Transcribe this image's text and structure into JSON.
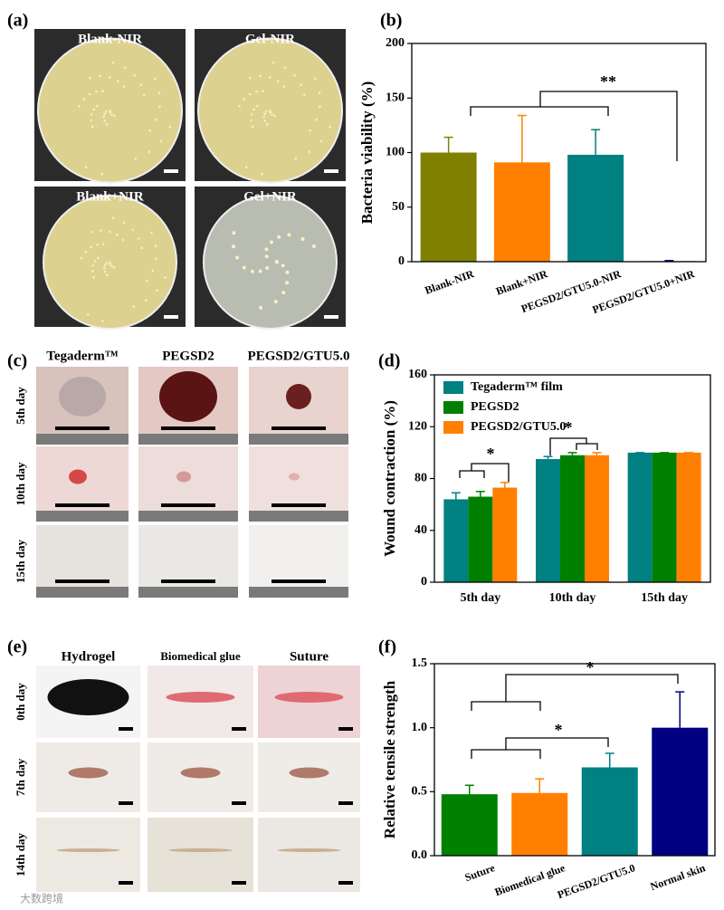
{
  "panel_labels": [
    "(a)",
    "(b)",
    "(c)",
    "(d)",
    "(e)",
    "(f)"
  ],
  "plates": {
    "titles": [
      "Blank-NIR",
      "Gel-NIR",
      "Blank+NIR",
      "Gel+NIR"
    ]
  },
  "wound_photos": {
    "columns": [
      "Tegaderm™",
      "PEGSD2",
      "PEGSD2/GTU5.0"
    ],
    "rows": [
      "5th day",
      "10th day",
      "15th day"
    ]
  },
  "incision_photos": {
    "columns": [
      "Hydrogel",
      "Biomedical glue",
      "Suture"
    ],
    "rows": [
      "0th day",
      "7th day",
      "14th day"
    ]
  },
  "chart_data": [
    {
      "type": "bar",
      "ylabel": "Bacteria viability (%)",
      "categories": [
        "Blank-NIR",
        "Blank+NIR",
        "PEGSD2/GTU5.0-NIR",
        "PEGSD2/GTU5.0+NIR"
      ],
      "values": [
        100,
        91,
        98,
        0.5
      ],
      "errors": [
        14,
        43,
        23,
        0.5
      ],
      "colors": [
        "#808000",
        "#ff8000",
        "#008080",
        "#000080"
      ],
      "ylim": [
        0,
        200
      ],
      "yticks": [
        0,
        50,
        100,
        150,
        200
      ],
      "annotations": [
        "**"
      ]
    },
    {
      "type": "grouped-bar",
      "ylabel": "Wound contraction (%)",
      "categories": [
        "5th day",
        "10th day",
        "15th day"
      ],
      "series": [
        {
          "name": "Tegaderm™ film",
          "color": "#008080",
          "values": [
            64,
            95,
            100
          ],
          "errors": [
            5,
            2,
            0
          ]
        },
        {
          "name": "PEGSD2",
          "color": "#008000",
          "values": [
            66,
            98,
            100
          ],
          "errors": [
            4,
            2,
            0
          ]
        },
        {
          "name": "PEGSD2/GTU5.0",
          "color": "#ff8000",
          "values": [
            73,
            98,
            100
          ],
          "errors": [
            4,
            2,
            0
          ]
        }
      ],
      "ylim": [
        0,
        160
      ],
      "yticks": [
        0,
        40,
        80,
        120,
        160
      ],
      "legend": "upper left",
      "annotations": [
        "*",
        "*"
      ]
    },
    {
      "type": "bar",
      "ylabel": "Relative tensile strength",
      "categories": [
        "Suture",
        "Biomedical glue",
        "PEGSD2/GTU5.0",
        "Normal skin"
      ],
      "values": [
        0.48,
        0.49,
        0.69,
        1.0
      ],
      "errors": [
        0.07,
        0.11,
        0.11,
        0.28
      ],
      "colors": [
        "#008000",
        "#ff8000",
        "#008080",
        "#000080"
      ],
      "ylim": [
        0,
        1.5
      ],
      "yticks": [
        {
          "value": 0,
          "label": "0.0"
        },
        {
          "value": 0.5,
          "label": "0.5"
        },
        {
          "value": 1,
          "label": "1.0"
        },
        {
          "value": 1.5,
          "label": "1.5"
        }
      ],
      "annotations": [
        "*",
        "*"
      ]
    }
  ],
  "watermark": "大数跨境"
}
